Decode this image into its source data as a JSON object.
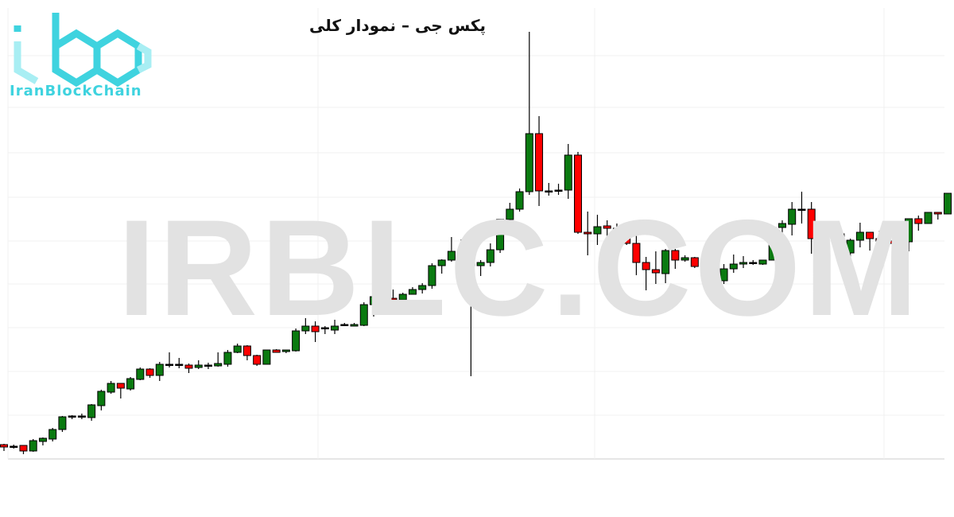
{
  "logo": {
    "text": "IranBlockChain",
    "color": "#3fd3df"
  },
  "watermark": "IRBLC.COM",
  "chart_data": {
    "type": "candlestick",
    "title": "پکس جی – نمودار کلی",
    "grid": true,
    "ylim": [
      0,
      600
    ],
    "colors": {
      "up": "#0a7a10",
      "down": "#ff0000",
      "wick": "#000000"
    },
    "ohlc": [
      [
        41,
        42,
        33,
        38
      ],
      [
        39,
        41,
        36,
        39
      ],
      [
        40,
        40,
        29,
        33
      ],
      [
        33,
        48,
        32,
        46
      ],
      [
        45,
        50,
        40,
        49
      ],
      [
        48,
        62,
        45,
        60
      ],
      [
        60,
        77,
        57,
        76
      ],
      [
        77,
        78,
        73,
        77
      ],
      [
        77,
        80,
        73,
        77
      ],
      [
        75,
        92,
        71,
        91
      ],
      [
        90,
        110,
        84,
        108
      ],
      [
        107,
        121,
        105,
        118
      ],
      [
        118,
        118,
        99,
        112
      ],
      [
        111,
        126,
        109,
        124
      ],
      [
        123,
        138,
        122,
        136
      ],
      [
        136,
        137,
        125,
        128
      ],
      [
        128,
        145,
        121,
        142
      ],
      [
        142,
        157,
        138,
        142
      ],
      [
        142,
        150,
        137,
        142
      ],
      [
        141,
        143,
        131,
        137
      ],
      [
        138,
        147,
        136,
        141
      ],
      [
        141,
        144,
        136,
        141
      ],
      [
        140,
        157,
        139,
        143
      ],
      [
        142,
        160,
        139,
        157
      ],
      [
        157,
        168,
        156,
        165
      ],
      [
        165,
        166,
        147,
        153
      ],
      [
        153,
        154,
        140,
        142
      ],
      [
        142,
        160,
        142,
        160
      ],
      [
        160,
        161,
        157,
        157
      ],
      [
        158,
        160,
        156,
        160
      ],
      [
        159,
        187,
        158,
        184
      ],
      [
        184,
        200,
        180,
        190
      ],
      [
        190,
        196,
        170,
        183
      ],
      [
        188,
        190,
        180,
        188
      ],
      [
        185,
        198,
        180,
        190
      ],
      [
        192,
        194,
        190,
        192
      ],
      [
        190,
        194,
        190,
        192
      ],
      [
        191,
        220,
        190,
        217
      ],
      [
        217,
        229,
        202,
        227
      ],
      [
        227,
        238,
        223,
        225
      ],
      [
        225,
        236,
        208,
        223
      ],
      [
        223,
        232,
        214,
        230
      ],
      [
        230,
        239,
        230,
        236
      ],
      [
        236,
        244,
        231,
        241
      ],
      [
        241,
        269,
        237,
        266
      ],
      [
        266,
        274,
        256,
        273
      ],
      [
        273,
        302,
        271,
        284
      ],
      [
        284,
        299,
        258,
        273
      ],
      [
        273,
        285,
        127,
        266
      ],
      [
        266,
        273,
        253,
        270
      ],
      [
        270,
        294,
        265,
        286
      ],
      [
        286,
        324,
        282,
        324
      ],
      [
        324,
        345,
        309,
        337
      ],
      [
        337,
        363,
        334,
        359
      ],
      [
        359,
        560,
        355,
        432
      ],
      [
        432,
        454,
        341,
        360
      ],
      [
        360,
        370,
        354,
        360
      ],
      [
        361,
        369,
        355,
        361
      ],
      [
        361,
        419,
        350,
        405
      ],
      [
        405,
        409,
        306,
        308
      ],
      [
        308,
        334,
        279,
        306
      ],
      [
        306,
        330,
        292,
        315
      ],
      [
        316,
        323,
        288,
        313
      ],
      [
        313,
        319,
        308,
        313
      ],
      [
        313,
        314,
        292,
        294
      ],
      [
        294,
        307,
        254,
        270
      ],
      [
        270,
        277,
        235,
        261
      ],
      [
        261,
        284,
        243,
        257
      ],
      [
        256,
        287,
        244,
        285
      ],
      [
        285,
        287,
        262,
        273
      ],
      [
        273,
        279,
        271,
        276
      ],
      [
        276,
        277,
        263,
        265
      ],
      [
        265,
        282,
        258,
        270
      ],
      [
        270,
        270,
        243,
        247
      ],
      [
        247,
        268,
        243,
        262
      ],
      [
        262,
        280,
        257,
        268
      ],
      [
        268,
        278,
        263,
        270
      ],
      [
        270,
        273,
        267,
        270
      ],
      [
        268,
        273,
        267,
        273
      ],
      [
        273,
        314,
        273,
        314
      ],
      [
        314,
        323,
        303,
        319
      ],
      [
        318,
        346,
        304,
        337
      ],
      [
        337,
        359,
        319,
        337
      ],
      [
        337,
        346,
        281,
        300
      ],
      [
        300,
        310,
        298,
        307
      ],
      [
        307,
        315,
        300,
        307
      ],
      [
        306,
        307,
        272,
        282
      ],
      [
        282,
        300,
        270,
        298
      ],
      [
        298,
        320,
        289,
        308
      ],
      [
        308,
        308,
        285,
        300
      ],
      [
        300,
        310,
        278,
        297
      ],
      [
        297,
        297,
        292,
        294
      ],
      [
        294,
        297,
        287,
        296
      ],
      [
        296,
        325,
        284,
        325
      ],
      [
        325,
        329,
        310,
        319
      ],
      [
        319,
        333,
        319,
        333
      ],
      [
        333,
        333,
        324,
        331
      ],
      [
        331,
        357,
        331,
        357
      ]
    ]
  }
}
